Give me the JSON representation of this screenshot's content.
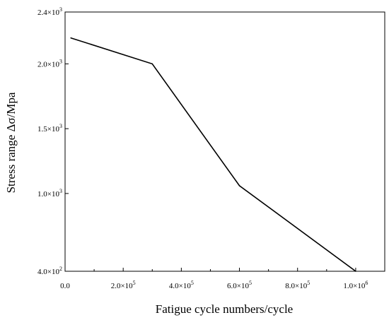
{
  "chart_data": {
    "type": "line",
    "title": "",
    "xlabel": "Fatigue cycle numbers/cycle",
    "ylabel": "Stress range  Δσ/Mpa",
    "xlim": [
      0,
      1100000
    ],
    "ylim": [
      400,
      2400
    ],
    "grid": false,
    "legend": "none",
    "line_color": "#000000",
    "x_ticks": [
      {
        "value": 0,
        "mantissa": "0.0",
        "exp": ""
      },
      {
        "value": 200000,
        "mantissa": "2.0×10",
        "exp": "5"
      },
      {
        "value": 400000,
        "mantissa": "4.0×10",
        "exp": "5"
      },
      {
        "value": 600000,
        "mantissa": "6.0×10",
        "exp": "5"
      },
      {
        "value": 800000,
        "mantissa": "8.0×10",
        "exp": "5"
      },
      {
        "value": 1000000,
        "mantissa": "1.0×10",
        "exp": "6"
      }
    ],
    "y_ticks": [
      {
        "value": 400,
        "mantissa": "4.0×10",
        "exp": "2"
      },
      {
        "value": 1000,
        "mantissa": "1.0×10",
        "exp": "3"
      },
      {
        "value": 1500,
        "mantissa": "1.5×10",
        "exp": "3"
      },
      {
        "value": 2000,
        "mantissa": "2.0×10",
        "exp": "3"
      },
      {
        "value": 2400,
        "mantissa": "2.4×10",
        "exp": "3"
      }
    ],
    "series": [
      {
        "x": [
          20000,
          300000,
          600000,
          1000000
        ],
        "y": [
          2200,
          2000,
          1060,
          400
        ]
      }
    ]
  }
}
